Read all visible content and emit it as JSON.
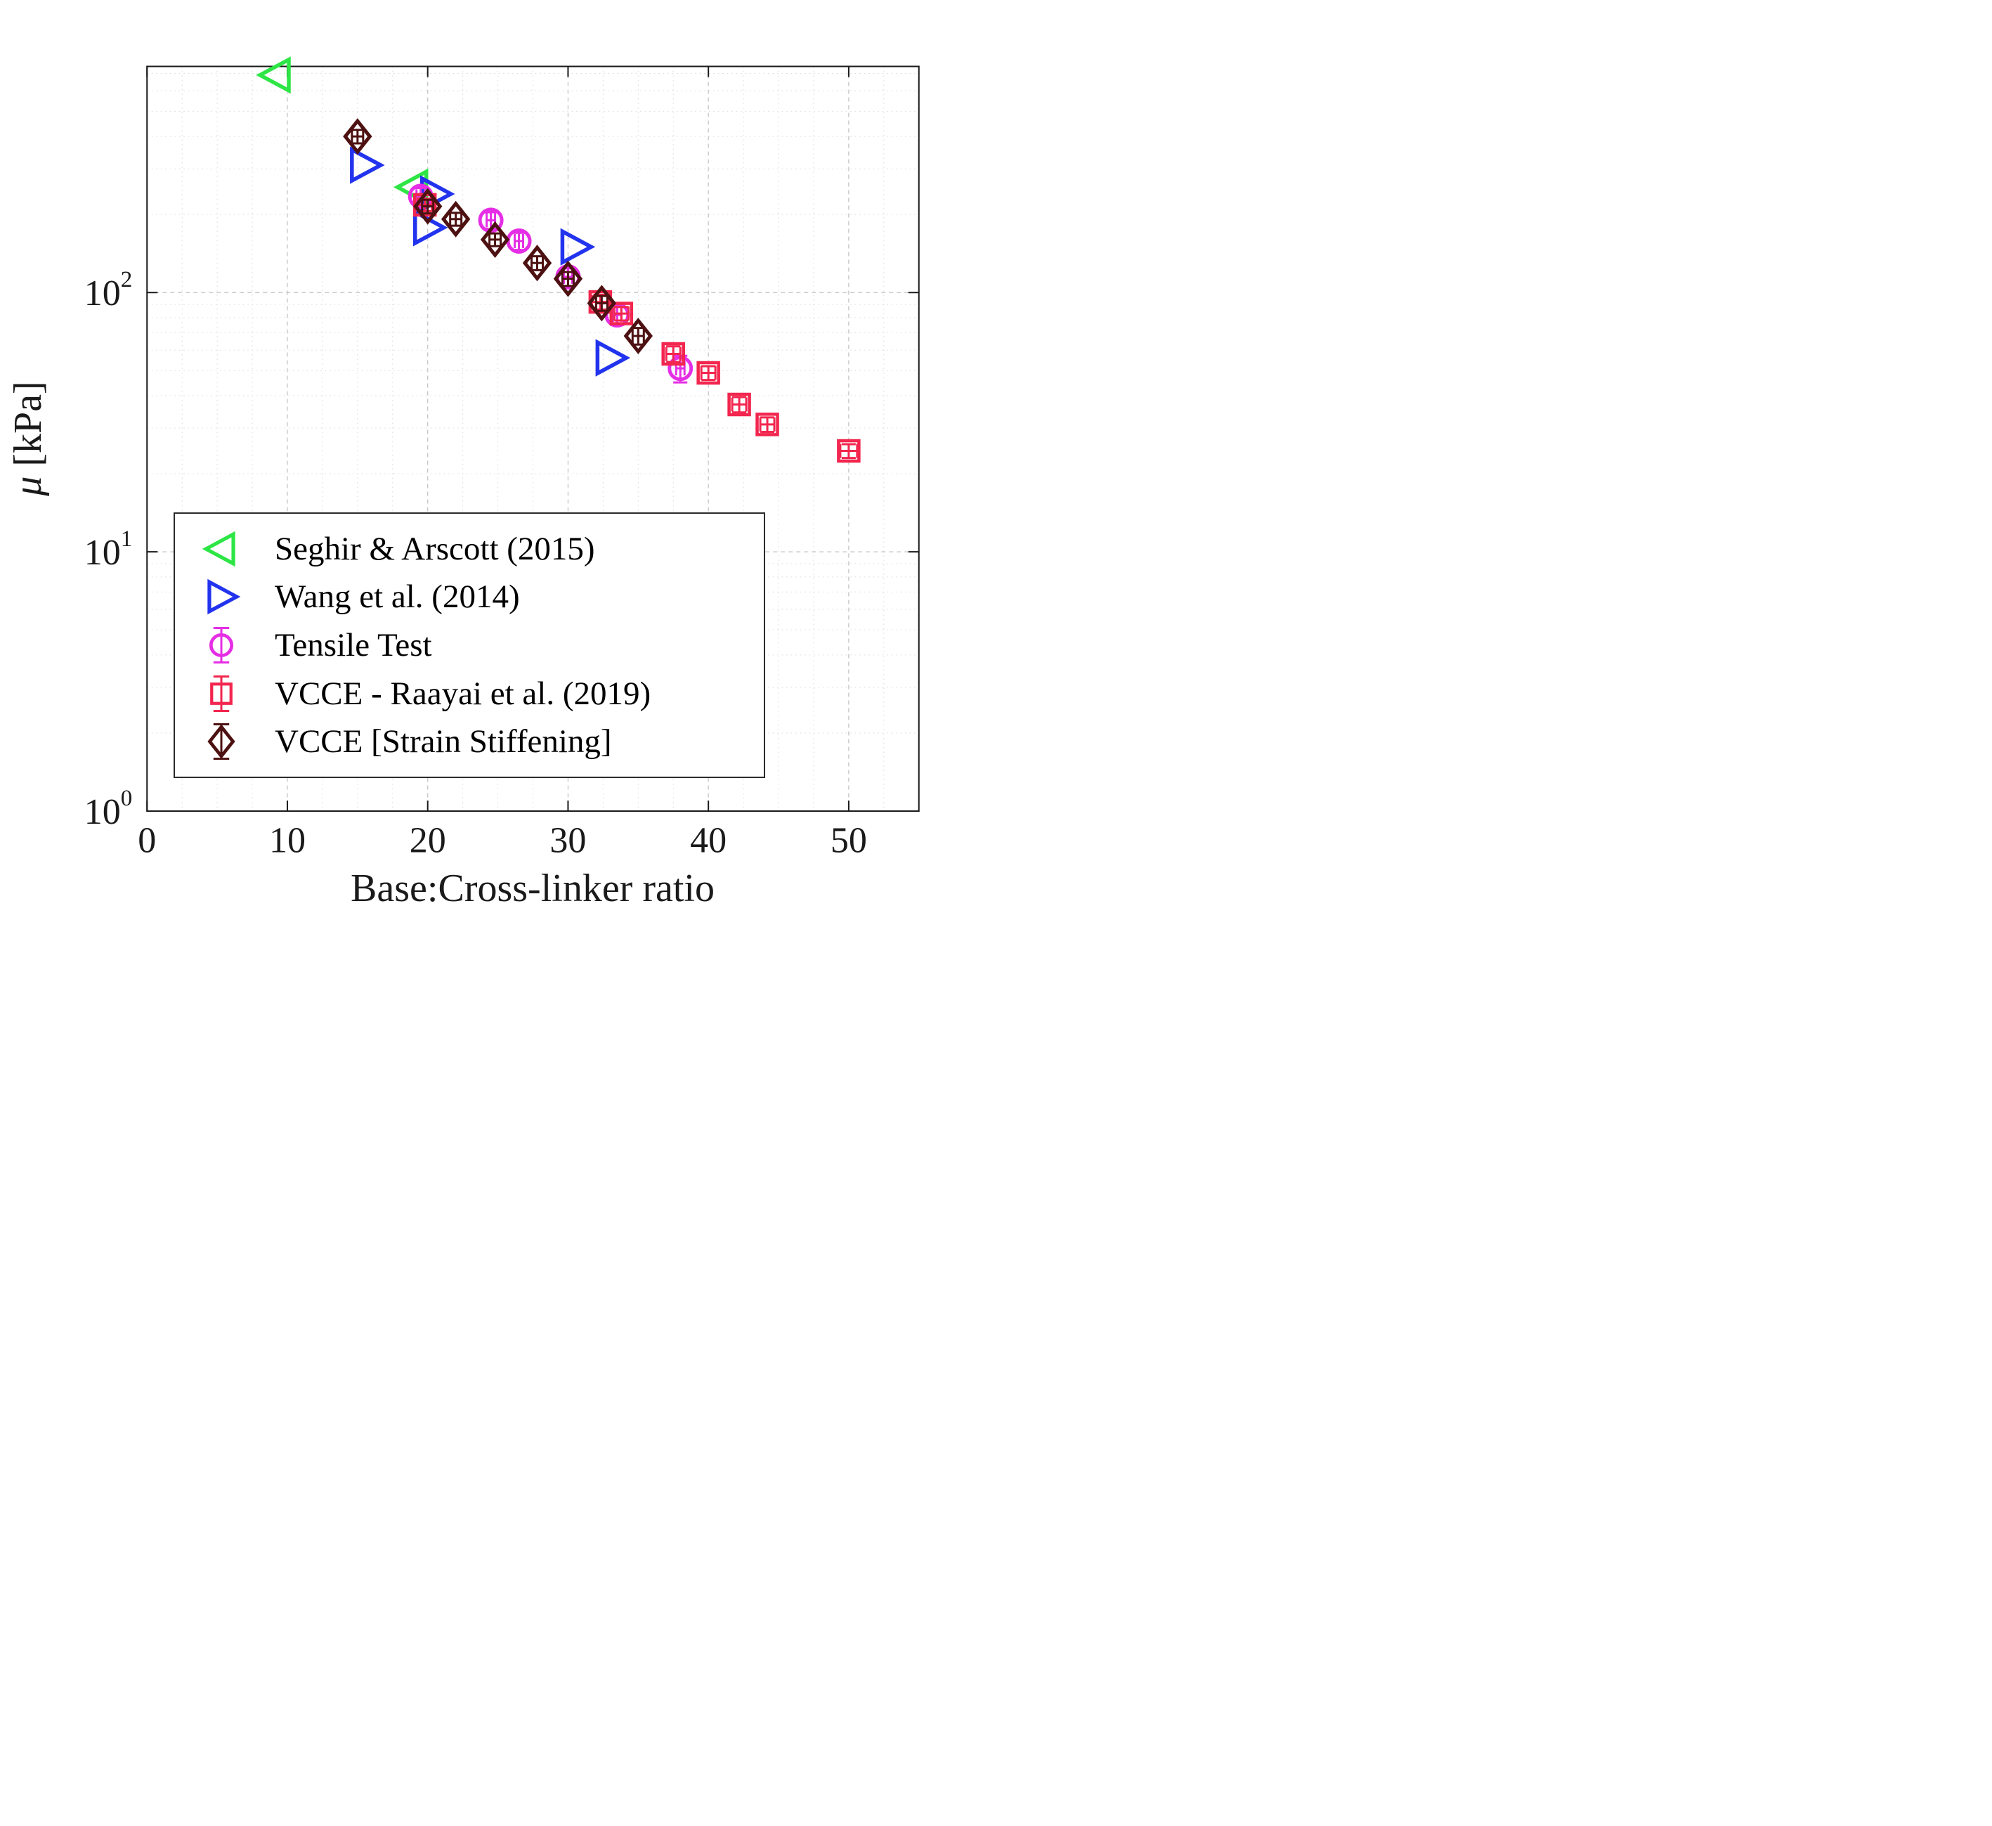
{
  "figure": {
    "ylabel_symbol": "μ",
    "ylabel_unit": " [kPa]"
  },
  "chart_data": {
    "type": "scatter",
    "title": "",
    "xlabel": "Base:Cross-linker ratio",
    "ylabel": "μ [kPa]",
    "xlim": [
      0,
      55
    ],
    "ylim": [
      1,
      745
    ],
    "yscale": "log",
    "xticks": [
      0,
      10,
      20,
      30,
      40,
      50
    ],
    "yticks": [
      {
        "v": 1,
        "base": "10",
        "exp": "0"
      },
      {
        "v": 10,
        "base": "10",
        "exp": "1"
      },
      {
        "v": 100,
        "base": "10",
        "exp": "2"
      }
    ],
    "grid": {
      "major": true,
      "minor": true,
      "color": "#c3c3c3",
      "minor_color": "#dadada"
    },
    "axis_color": "#1a1a1a",
    "legend_position": "lower-left",
    "series": [
      {
        "name": "Seghir & Arscott (2015)",
        "marker": "triangle-left",
        "color": "#2DE646",
        "errorbars": false,
        "points": [
          {
            "x": 9.2,
            "y": 690
          },
          {
            "x": 19,
            "y": 255
          }
        ]
      },
      {
        "name": "Wang et al. (2014)",
        "marker": "triangle-right",
        "color": "#2233EE",
        "errorbars": false,
        "points": [
          {
            "x": 15.5,
            "y": 310
          },
          {
            "x": 20.5,
            "y": 240
          },
          {
            "x": 20,
            "y": 178
          },
          {
            "x": 30.5,
            "y": 150
          },
          {
            "x": 33,
            "y": 56
          }
        ]
      },
      {
        "name": "Tensile Test",
        "marker": "circle",
        "color": "#E52EE5",
        "errorbars": true,
        "points": [
          {
            "x": 19.5,
            "y": 235,
            "ex": 0.3,
            "ey": 18
          },
          {
            "x": 24.5,
            "y": 190,
            "ex": 0.3,
            "ey": 14
          },
          {
            "x": 26.5,
            "y": 158,
            "ex": 0.3,
            "ey": 12
          },
          {
            "x": 30,
            "y": 115,
            "ex": 0.3,
            "ey": 9
          },
          {
            "x": 33.5,
            "y": 82,
            "ex": 0.3,
            "ey": 7
          },
          {
            "x": 38,
            "y": 51,
            "ex": 0.3,
            "ey": 6
          }
        ]
      },
      {
        "name": "VCCE - Raayai et al. (2019)",
        "marker": "square",
        "color": "#F2264E",
        "errorbars": true,
        "points": [
          {
            "x": 19.8,
            "y": 218,
            "ex": 0.5,
            "ey": 12
          },
          {
            "x": 32.3,
            "y": 92,
            "ex": 0.6,
            "ey": 6
          },
          {
            "x": 33.8,
            "y": 83,
            "ex": 0.5,
            "ey": 5
          },
          {
            "x": 37.5,
            "y": 58,
            "ex": 0.5,
            "ey": 4
          },
          {
            "x": 40,
            "y": 49,
            "ex": 0.5,
            "ey": 3
          },
          {
            "x": 42.2,
            "y": 37,
            "ex": 0.5,
            "ey": 2.5
          },
          {
            "x": 44.2,
            "y": 31,
            "ex": 0.5,
            "ey": 2
          },
          {
            "x": 50,
            "y": 24.5,
            "ex": 0.6,
            "ey": 1.5
          }
        ]
      },
      {
        "name": "VCCE [Strain Stiffening]",
        "marker": "diamond",
        "color": "#4D1111",
        "errorbars": true,
        "points": [
          {
            "x": 15,
            "y": 400,
            "ex": 0.4,
            "ey": 24
          },
          {
            "x": 20,
            "y": 215,
            "ex": 0.4,
            "ey": 13
          },
          {
            "x": 22,
            "y": 192,
            "ex": 0.4,
            "ey": 11
          },
          {
            "x": 24.8,
            "y": 160,
            "ex": 0.4,
            "ey": 9
          },
          {
            "x": 27.8,
            "y": 130,
            "ex": 0.4,
            "ey": 8
          },
          {
            "x": 30,
            "y": 113,
            "ex": 0.4,
            "ey": 7
          },
          {
            "x": 32.4,
            "y": 91,
            "ex": 0.4,
            "ey": 6
          },
          {
            "x": 35,
            "y": 68,
            "ex": 0.4,
            "ey": 5
          }
        ]
      }
    ]
  }
}
